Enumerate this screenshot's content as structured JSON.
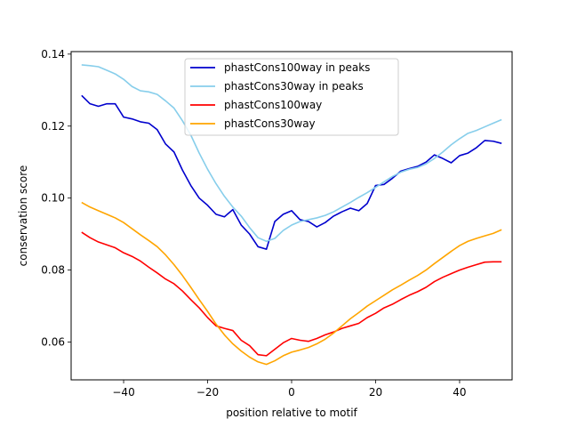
{
  "chart_data": {
    "type": "line",
    "title": "",
    "xlabel": "position relative to motif",
    "ylabel": "conservation score",
    "xlim": [
      -52.5,
      52.5
    ],
    "ylim": [
      0.0495,
      0.1407
    ],
    "xticks": [
      -40,
      -20,
      0,
      20,
      40
    ],
    "xtick_labels": [
      "−40",
      "−20",
      "0",
      "20",
      "40"
    ],
    "yticks": [
      0.06,
      0.08,
      0.1,
      0.12,
      0.14
    ],
    "ytick_labels": [
      "0.06",
      "0.08",
      "0.10",
      "0.12",
      "0.14"
    ],
    "grid": false,
    "legend_position": "top-center",
    "series": [
      {
        "name": "phastCons100way in peaks",
        "color": "#0000cd",
        "x": [
          -50,
          -48,
          -46,
          -44,
          -42,
          -40,
          -38,
          -36,
          -34,
          -32,
          -30,
          -28,
          -26,
          -24,
          -22,
          -20,
          -18,
          -16,
          -14,
          -12,
          -10,
          -8,
          -6,
          -4,
          -2,
          0,
          2,
          4,
          6,
          8,
          10,
          12,
          14,
          16,
          18,
          20,
          22,
          24,
          26,
          28,
          30,
          32,
          34,
          36,
          38,
          40,
          42,
          44,
          46,
          48,
          50
        ],
        "y": [
          0.1285,
          0.1262,
          0.1255,
          0.1262,
          0.1262,
          0.1225,
          0.122,
          0.1212,
          0.1208,
          0.119,
          0.115,
          0.1128,
          0.1078,
          0.1035,
          0.1,
          0.098,
          0.0955,
          0.0948,
          0.0968,
          0.0925,
          0.09,
          0.0865,
          0.0858,
          0.0935,
          0.0955,
          0.0965,
          0.094,
          0.0935,
          0.092,
          0.0932,
          0.095,
          0.0962,
          0.0972,
          0.0965,
          0.0985,
          0.1035,
          0.1038,
          0.1055,
          0.1075,
          0.1082,
          0.1088,
          0.11,
          0.112,
          0.111,
          0.1098,
          0.1118,
          0.1125,
          0.114,
          0.116,
          0.1158,
          0.1152
        ]
      },
      {
        "name": "phastCons30way in peaks",
        "color": "#87ceeb",
        "x": [
          -50,
          -48,
          -46,
          -44,
          -42,
          -40,
          -38,
          -36,
          -34,
          -32,
          -30,
          -28,
          -26,
          -24,
          -22,
          -20,
          -18,
          -16,
          -14,
          -12,
          -10,
          -8,
          -6,
          -4,
          -2,
          0,
          2,
          4,
          6,
          8,
          10,
          12,
          14,
          16,
          18,
          20,
          22,
          24,
          26,
          28,
          30,
          32,
          34,
          36,
          38,
          40,
          42,
          44,
          46,
          48,
          50
        ],
        "y": [
          0.137,
          0.1368,
          0.1365,
          0.1355,
          0.1345,
          0.133,
          0.131,
          0.1298,
          0.1295,
          0.1288,
          0.127,
          0.125,
          0.1215,
          0.1175,
          0.1125,
          0.108,
          0.104,
          0.1005,
          0.0975,
          0.095,
          0.0918,
          0.089,
          0.088,
          0.0888,
          0.091,
          0.0925,
          0.0935,
          0.094,
          0.0945,
          0.0952,
          0.0962,
          0.0975,
          0.0988,
          0.1002,
          0.1015,
          0.103,
          0.1045,
          0.106,
          0.1072,
          0.108,
          0.1085,
          0.1095,
          0.111,
          0.1128,
          0.1148,
          0.1165,
          0.118,
          0.1188,
          0.1198,
          0.1208,
          0.1218
        ]
      },
      {
        "name": "phastCons100way",
        "color": "#ff0000",
        "x": [
          -50,
          -48,
          -46,
          -44,
          -42,
          -40,
          -38,
          -36,
          -34,
          -32,
          -30,
          -28,
          -26,
          -24,
          -22,
          -20,
          -18,
          -16,
          -14,
          -12,
          -10,
          -8,
          -6,
          -4,
          -2,
          0,
          2,
          4,
          6,
          8,
          10,
          12,
          14,
          16,
          18,
          20,
          22,
          24,
          26,
          28,
          30,
          32,
          34,
          36,
          38,
          40,
          42,
          44,
          46,
          48,
          50
        ],
        "y": [
          0.0905,
          0.089,
          0.0878,
          0.087,
          0.0862,
          0.0848,
          0.0838,
          0.0825,
          0.0808,
          0.0792,
          0.0775,
          0.0762,
          0.0742,
          0.0718,
          0.0695,
          0.0668,
          0.0645,
          0.0638,
          0.0632,
          0.0605,
          0.059,
          0.0565,
          0.0562,
          0.058,
          0.0598,
          0.061,
          0.0605,
          0.0602,
          0.061,
          0.062,
          0.0628,
          0.0638,
          0.0645,
          0.0652,
          0.0668,
          0.068,
          0.0695,
          0.0705,
          0.0718,
          0.073,
          0.074,
          0.0752,
          0.0768,
          0.078,
          0.079,
          0.08,
          0.0808,
          0.0815,
          0.0822,
          0.0823,
          0.0823
        ]
      },
      {
        "name": "phastCons30way",
        "color": "#ffa500",
        "x": [
          -50,
          -48,
          -46,
          -44,
          -42,
          -40,
          -38,
          -36,
          -34,
          -32,
          -30,
          -28,
          -26,
          -24,
          -22,
          -20,
          -18,
          -16,
          -14,
          -12,
          -10,
          -8,
          -6,
          -4,
          -2,
          0,
          2,
          4,
          6,
          8,
          10,
          12,
          14,
          16,
          18,
          20,
          22,
          24,
          26,
          28,
          30,
          32,
          34,
          36,
          38,
          40,
          42,
          44,
          46,
          48,
          50
        ],
        "y": [
          0.0988,
          0.0975,
          0.0965,
          0.0955,
          0.0945,
          0.0932,
          0.0915,
          0.0898,
          0.0882,
          0.0865,
          0.0842,
          0.0815,
          0.0785,
          0.0752,
          0.0718,
          0.0685,
          0.065,
          0.062,
          0.0595,
          0.0575,
          0.0558,
          0.0545,
          0.0538,
          0.0548,
          0.0562,
          0.0572,
          0.0578,
          0.0585,
          0.0595,
          0.0608,
          0.0625,
          0.0645,
          0.0665,
          0.0682,
          0.07,
          0.0715,
          0.073,
          0.0745,
          0.0758,
          0.0772,
          0.0785,
          0.08,
          0.0818,
          0.0835,
          0.0852,
          0.0868,
          0.088,
          0.0888,
          0.0895,
          0.0902,
          0.0912
        ]
      }
    ]
  }
}
